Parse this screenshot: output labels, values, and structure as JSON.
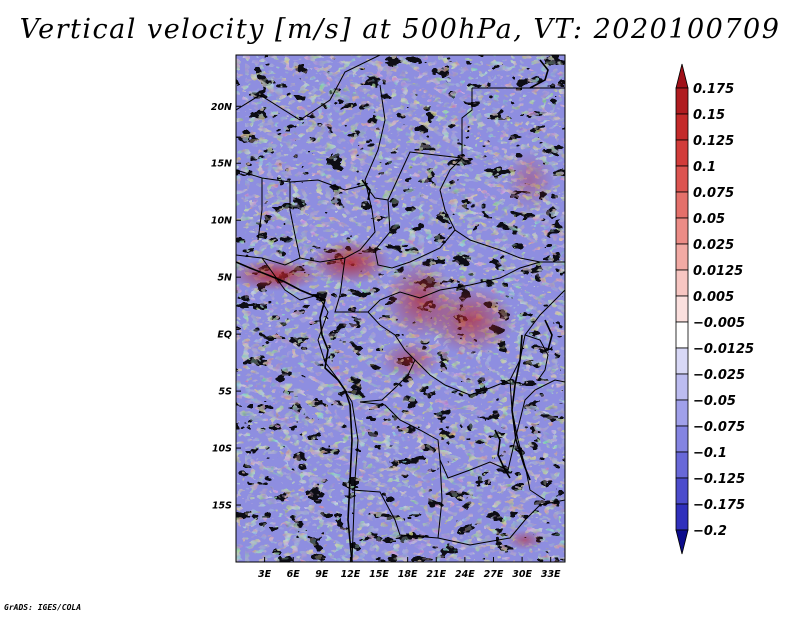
{
  "title": "Vertical velocity [m/s] at 500hPa, VT: 2020100709",
  "credit": "GrADS: IGES/COLA",
  "map": {
    "lon_range": [
      0,
      34.5
    ],
    "lat_range": [
      -20,
      24.5
    ],
    "lat_ticks": [
      {
        "value": 20,
        "label": "20N"
      },
      {
        "value": 15,
        "label": "15N"
      },
      {
        "value": 10,
        "label": "10N"
      },
      {
        "value": 5,
        "label": "5N"
      },
      {
        "value": 0,
        "label": "EQ"
      },
      {
        "value": -5,
        "label": "5S"
      },
      {
        "value": -10,
        "label": "10S"
      },
      {
        "value": -15,
        "label": "15S"
      }
    ],
    "lon_ticks": [
      {
        "value": 3,
        "label": "3E"
      },
      {
        "value": 6,
        "label": "6E"
      },
      {
        "value": 9,
        "label": "9E"
      },
      {
        "value": 12,
        "label": "12E"
      },
      {
        "value": 15,
        "label": "15E"
      },
      {
        "value": 18,
        "label": "18E"
      },
      {
        "value": 21,
        "label": "21E"
      },
      {
        "value": 24,
        "label": "24E"
      },
      {
        "value": 27,
        "label": "27E"
      },
      {
        "value": 30,
        "label": "30E"
      },
      {
        "value": 33,
        "label": "33E"
      }
    ]
  },
  "colorbar": {
    "levels": [
      {
        "label": "0.175",
        "color": "#b01c20"
      },
      {
        "label": "0.15",
        "color": "#c42a2a"
      },
      {
        "label": "0.125",
        "color": "#d23c3a"
      },
      {
        "label": "0.1",
        "color": "#dc5450"
      },
      {
        "label": "0.075",
        "color": "#e4706a"
      },
      {
        "label": "0.05",
        "color": "#ec8c86"
      },
      {
        "label": "0.025",
        "color": "#f2aaa4"
      },
      {
        "label": "0.0125",
        "color": "#f7c6c2"
      },
      {
        "label": "0.005",
        "color": "#fbe0de"
      },
      {
        "label": "-0.005",
        "color": "#ffffff"
      },
      {
        "label": "-0.0125",
        "color": "#d8d8f6"
      },
      {
        "label": "-0.025",
        "color": "#bcbcf0"
      },
      {
        "label": "-0.05",
        "color": "#a0a0ea"
      },
      {
        "label": "-0.075",
        "color": "#8484e2"
      },
      {
        "label": "-0.1",
        "color": "#6868d8"
      },
      {
        "label": "-0.125",
        "color": "#4c4ccc"
      },
      {
        "label": "-0.175",
        "color": "#3030bc"
      },
      {
        "label": "-0.2",
        "color": "#1a1aa4"
      }
    ],
    "top_color": "#a01018",
    "bottom_color": "#0c0c8c"
  }
}
